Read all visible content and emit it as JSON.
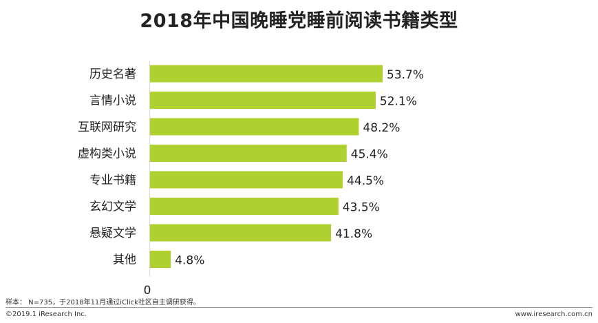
{
  "chart_data": {
    "type": "bar",
    "orientation": "horizontal",
    "title": "2018年中国晚睡党睡前阅读书籍类型",
    "categories": [
      "历史名著",
      "言情小说",
      "互联网研究",
      "虚构类小说",
      "专业书籍",
      "玄幻文学",
      "悬疑文学",
      "其他"
    ],
    "values": [
      53.7,
      52.1,
      48.2,
      45.4,
      44.5,
      43.5,
      41.8,
      4.8
    ],
    "value_labels": [
      "53.7%",
      "52.1%",
      "48.2%",
      "45.4%",
      "44.5%",
      "43.5%",
      "41.8%",
      "4.8%"
    ],
    "xlim": [
      0,
      53.7
    ],
    "x_tick_labels": [
      "0"
    ],
    "bar_color": "#aed12f",
    "grid": false,
    "legend": "none"
  },
  "footer": {
    "note": "样本： N=735，于2018年11月通过iClick社区自主调研获得。",
    "copyright": "©2019.1 iResearch Inc.",
    "website": "www.iresearch.com.cn"
  }
}
